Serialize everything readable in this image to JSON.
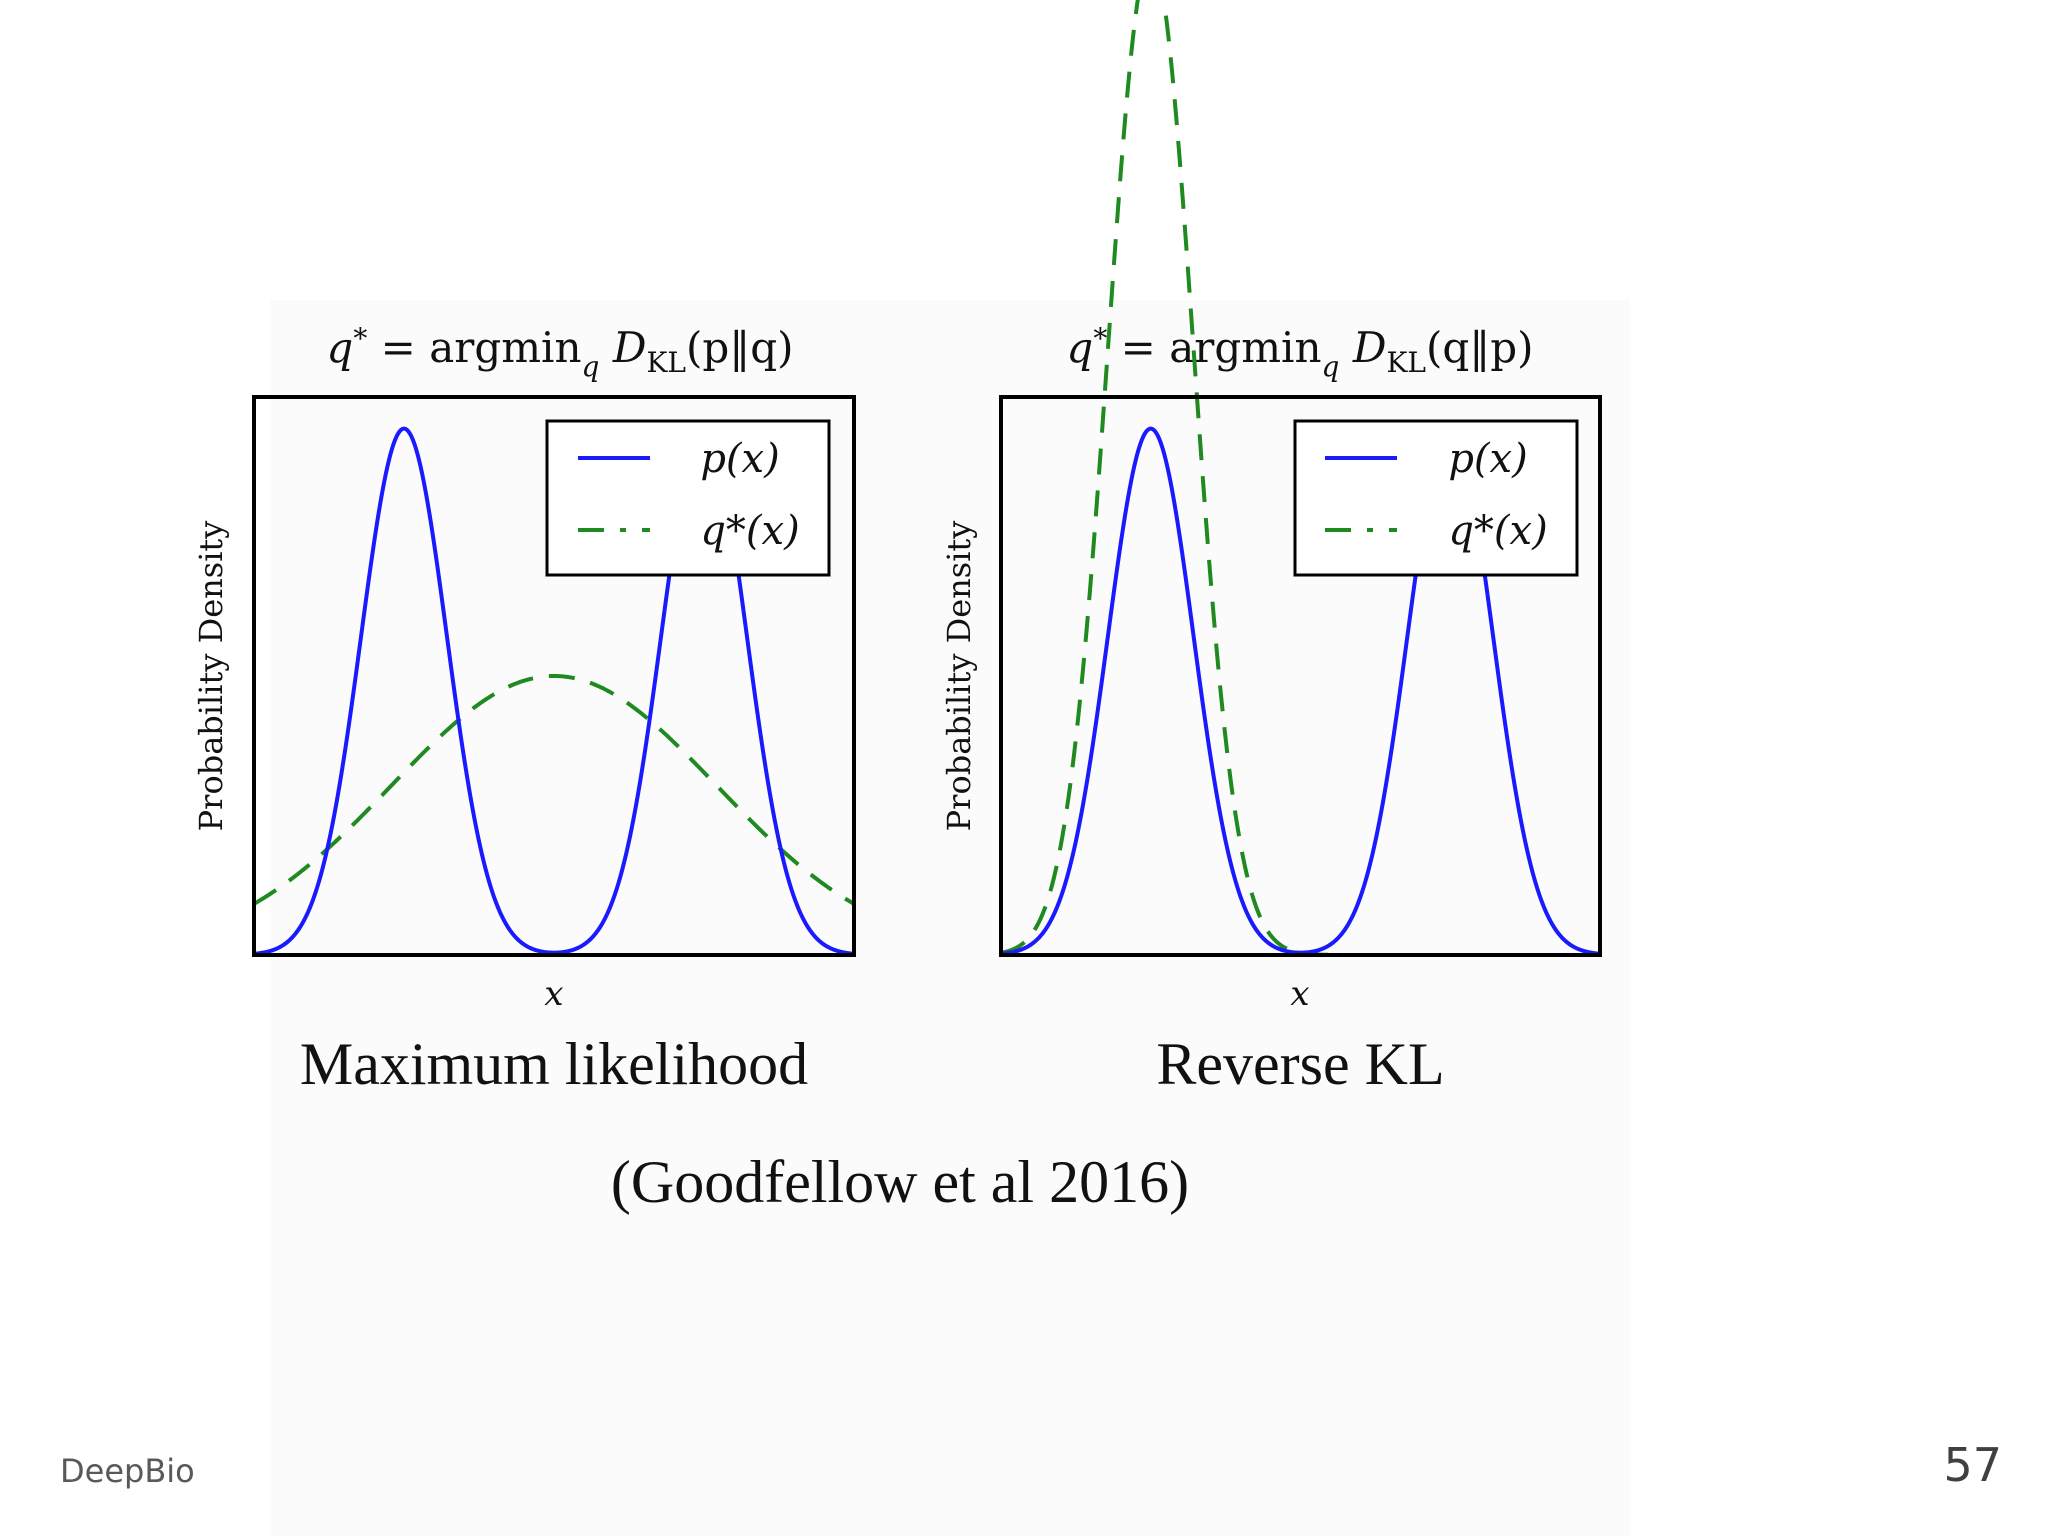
{
  "slide": {
    "figure_captions": [
      "Maximum likelihood",
      "Reverse KL"
    ],
    "citation": "(Goodfellow et al 2016)",
    "footer_label": "DeepBio",
    "page_number": "57"
  },
  "colors": {
    "p_curve": "#1a1aff",
    "q_curve": "#1f8a1f",
    "frame": "#000000"
  },
  "chart_data": [
    {
      "type": "line",
      "title_main": "q* = argmin",
      "title_sub": "q",
      "title_tail": " D",
      "title_kl": "KL",
      "title_args": "(p‖q)",
      "xlabel": "x",
      "ylabel": "Probability Density",
      "xlim": [
        -3.5,
        3.5
      ],
      "ylim": [
        0,
        1.06
      ],
      "legend_position": "top-right",
      "series": [
        {
          "name": "p(x)",
          "style": "solid",
          "components": [
            {
              "weight": 1,
              "mu": -1.75,
              "sigma": 0.5
            },
            {
              "weight": 1,
              "mu": 1.75,
              "sigma": 0.5
            }
          ]
        },
        {
          "name": "q*(x)",
          "style": "dashed",
          "components": [
            {
              "weight": 0.53,
              "mu": 0,
              "sigma": 1.9
            }
          ]
        }
      ],
      "caption": "Maximum likelihood"
    },
    {
      "type": "line",
      "title_main": "q* = argmin",
      "title_sub": "q",
      "title_tail": " D",
      "title_kl": "KL",
      "title_args": "(q‖p)",
      "xlabel": "x",
      "ylabel": "Probability Density",
      "xlim": [
        -3.5,
        3.5
      ],
      "ylim": [
        0,
        1.06
      ],
      "legend_position": "top-right",
      "series": [
        {
          "name": "p(x)",
          "style": "solid",
          "components": [
            {
              "weight": 1,
              "mu": -1.75,
              "sigma": 0.5
            },
            {
              "weight": 1,
              "mu": 1.75,
              "sigma": 0.5
            }
          ]
        },
        {
          "name": "q*(x)",
          "style": "dashed",
          "components": [
            {
              "weight": 1.9,
              "mu": -1.75,
              "sigma": 0.5
            }
          ]
        }
      ],
      "caption": "Reverse KL"
    }
  ]
}
